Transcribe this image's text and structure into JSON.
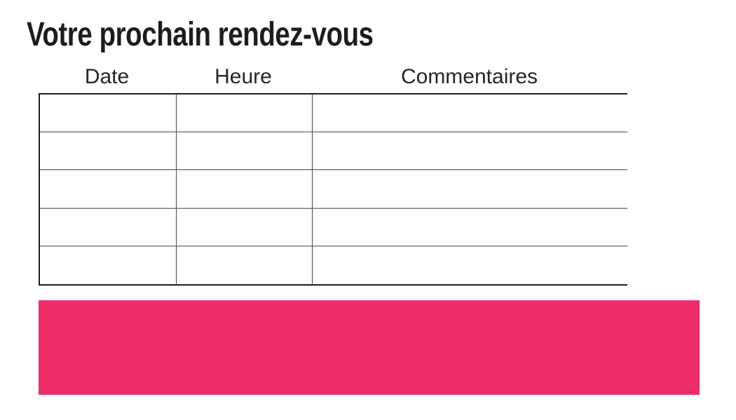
{
  "page": {
    "title": "Votre prochain rendez-vous"
  },
  "table": {
    "headers": [
      "Date",
      "Heure",
      "Commentaires"
    ],
    "row_count": 5,
    "rows": [
      [
        "",
        "",
        ""
      ],
      [
        "",
        "",
        ""
      ],
      [
        "",
        "",
        ""
      ],
      [
        "",
        "",
        ""
      ],
      [
        "",
        "",
        ""
      ]
    ]
  },
  "banner": {
    "text": "",
    "color": "#ED2D68"
  },
  "colors": {
    "accent_pink": "#ED2D68",
    "table_border_outer": "#1f1f1f",
    "table_border_inner": "#474747",
    "title_text": "#1d1d1b",
    "header_text": "#262626",
    "background": "#ffffff"
  }
}
